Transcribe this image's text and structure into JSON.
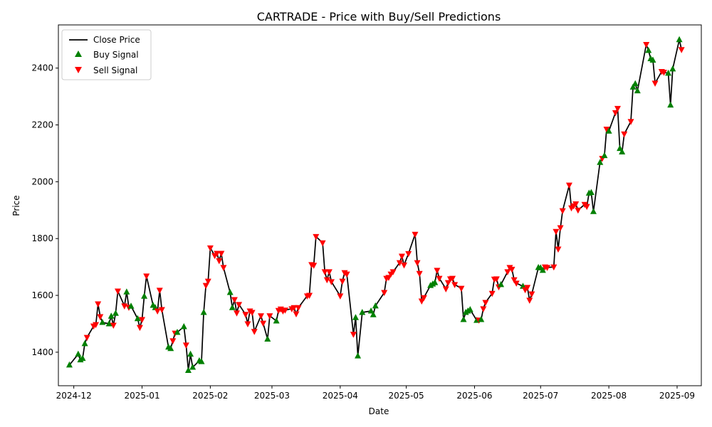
{
  "chart_data": {
    "type": "line",
    "title": "CARTRADE - Price with Buy/Sell Predictions",
    "xlabel": "Date",
    "ylabel": "Price",
    "x_range": [
      "2024-11-24",
      "2025-09-12"
    ],
    "ylim": [
      1282,
      2552
    ],
    "x_ticks": [
      {
        "date": "2024-12-01",
        "label": "2024-12"
      },
      {
        "date": "2025-01-01",
        "label": "2025-01"
      },
      {
        "date": "2025-02-01",
        "label": "2025-02"
      },
      {
        "date": "2025-03-01",
        "label": "2025-03"
      },
      {
        "date": "2025-04-01",
        "label": "2025-04"
      },
      {
        "date": "2025-05-01",
        "label": "2025-05"
      },
      {
        "date": "2025-06-01",
        "label": "2025-06"
      },
      {
        "date": "2025-07-01",
        "label": "2025-07"
      },
      {
        "date": "2025-08-01",
        "label": "2025-08"
      },
      {
        "date": "2025-09-01",
        "label": "2025-09"
      }
    ],
    "y_ticks": [
      1400,
      1600,
      1800,
      2000,
      2200,
      2400
    ],
    "grid": false,
    "legend_position": "top-left",
    "legend": [
      {
        "label": "Close Price",
        "marker": "line",
        "color": "#000000"
      },
      {
        "label": "Buy Signal",
        "marker": "triangle-up",
        "color": "#008000"
      },
      {
        "label": "Sell Signal",
        "marker": "triangle-down",
        "color": "#ff0000"
      }
    ],
    "points": [
      [
        "2024-11-29",
        1355,
        "B"
      ],
      [
        "2024-12-03",
        1393,
        "B"
      ],
      [
        "2024-12-04",
        1373,
        "B"
      ],
      [
        "2024-12-05",
        1378,
        "B"
      ],
      [
        "2024-12-06",
        1430,
        "B"
      ],
      [
        "2024-12-07",
        1452,
        "S"
      ],
      [
        "2024-12-10",
        1492,
        "S"
      ],
      [
        "2024-12-11",
        1497,
        "S"
      ],
      [
        "2024-12-12",
        1570,
        "S"
      ],
      [
        "2024-12-13",
        1525,
        "S"
      ],
      [
        "2024-12-14",
        1505,
        "B"
      ],
      [
        "2024-12-17",
        1500,
        "B"
      ],
      [
        "2024-12-18",
        1527,
        "B"
      ],
      [
        "2024-12-19",
        1495,
        "S"
      ],
      [
        "2024-12-20",
        1537,
        "B"
      ],
      [
        "2024-12-21",
        1615,
        "S"
      ],
      [
        "2024-12-24",
        1563,
        "S"
      ],
      [
        "2024-12-25",
        1612,
        "B"
      ],
      [
        "2024-12-26",
        1558,
        "S"
      ],
      [
        "2024-12-27",
        1562,
        "B"
      ],
      [
        "2024-12-30",
        1518,
        "B"
      ],
      [
        "2024-12-31",
        1487,
        "S"
      ],
      [
        "2025-01-01",
        1515,
        "S"
      ],
      [
        "2025-01-02",
        1597,
        "B"
      ],
      [
        "2025-01-03",
        1668,
        "S"
      ],
      [
        "2025-01-06",
        1565,
        "B"
      ],
      [
        "2025-01-07",
        1557,
        "B"
      ],
      [
        "2025-01-08",
        1545,
        "S"
      ],
      [
        "2025-01-09",
        1618,
        "S"
      ],
      [
        "2025-01-10",
        1550,
        "S"
      ],
      [
        "2025-01-13",
        1418,
        "B"
      ],
      [
        "2025-01-14",
        1413,
        "B"
      ],
      [
        "2025-01-15",
        1440,
        "S"
      ],
      [
        "2025-01-16",
        1467,
        "S"
      ],
      [
        "2025-01-17",
        1470,
        "B"
      ],
      [
        "2025-01-20",
        1490,
        "B"
      ],
      [
        "2025-01-21",
        1425,
        "S"
      ],
      [
        "2025-01-22",
        1336,
        "B"
      ],
      [
        "2025-01-23",
        1393,
        "B"
      ],
      [
        "2025-01-24",
        1347,
        "B"
      ],
      [
        "2025-01-27",
        1370,
        "B"
      ],
      [
        "2025-01-28",
        1367,
        "B"
      ],
      [
        "2025-01-29",
        1540,
        "B"
      ],
      [
        "2025-01-30",
        1635,
        "S"
      ],
      [
        "2025-01-31",
        1650,
        "S"
      ],
      [
        "2025-02-01",
        1767,
        "S"
      ],
      [
        "2025-02-03",
        1740,
        "S"
      ],
      [
        "2025-02-04",
        1748,
        "S"
      ],
      [
        "2025-02-05",
        1722,
        "S"
      ],
      [
        "2025-02-06",
        1748,
        "S"
      ],
      [
        "2025-02-07",
        1698,
        "S"
      ],
      [
        "2025-02-10",
        1610,
        "B"
      ],
      [
        "2025-02-11",
        1557,
        "B"
      ],
      [
        "2025-02-12",
        1585,
        "S"
      ],
      [
        "2025-02-13",
        1538,
        "S"
      ],
      [
        "2025-02-14",
        1568,
        "S"
      ],
      [
        "2025-02-17",
        1533,
        "S"
      ],
      [
        "2025-02-18",
        1500,
        "S"
      ],
      [
        "2025-02-19",
        1545,
        "S"
      ],
      [
        "2025-02-20",
        1540,
        "S"
      ],
      [
        "2025-02-21",
        1473,
        "S"
      ],
      [
        "2025-02-24",
        1528,
        "S"
      ],
      [
        "2025-02-25",
        1502,
        "S"
      ],
      [
        "2025-02-27",
        1446,
        "B"
      ],
      [
        "2025-02-28",
        1528,
        "S"
      ],
      [
        "2025-03-03",
        1510,
        "B"
      ],
      [
        "2025-03-04",
        1547,
        "S"
      ],
      [
        "2025-03-05",
        1552,
        "S"
      ],
      [
        "2025-03-06",
        1545,
        "S"
      ],
      [
        "2025-03-07",
        1548,
        "S"
      ],
      [
        "2025-03-10",
        1553,
        "S"
      ],
      [
        "2025-03-11",
        1557,
        "S"
      ],
      [
        "2025-03-12",
        1535,
        "S"
      ],
      [
        "2025-03-13",
        1557,
        "S"
      ],
      [
        "2025-03-17",
        1598,
        "S"
      ],
      [
        "2025-03-18",
        1600,
        "S"
      ],
      [
        "2025-03-19",
        1708,
        "S"
      ],
      [
        "2025-03-20",
        1706,
        "S"
      ],
      [
        "2025-03-21",
        1807,
        "S"
      ],
      [
        "2025-03-24",
        1785,
        "S"
      ],
      [
        "2025-03-25",
        1683,
        "S"
      ],
      [
        "2025-03-26",
        1655,
        "S"
      ],
      [
        "2025-03-27",
        1683,
        "S"
      ],
      [
        "2025-03-28",
        1648,
        "S"
      ],
      [
        "2025-04-01",
        1598,
        "S"
      ],
      [
        "2025-04-02",
        1650,
        "S"
      ],
      [
        "2025-04-03",
        1680,
        "S"
      ],
      [
        "2025-04-04",
        1675,
        "S"
      ],
      [
        "2025-04-07",
        1463,
        "S"
      ],
      [
        "2025-04-08",
        1522,
        "B"
      ],
      [
        "2025-04-09",
        1387,
        "B"
      ],
      [
        "2025-04-11",
        1540,
        "B"
      ],
      [
        "2025-04-15",
        1545,
        "B"
      ],
      [
        "2025-04-16",
        1532,
        "B"
      ],
      [
        "2025-04-17",
        1563,
        "B"
      ],
      [
        "2025-04-21",
        1610,
        "S"
      ],
      [
        "2025-04-22",
        1660,
        "S"
      ],
      [
        "2025-04-23",
        1663,
        "S"
      ],
      [
        "2025-04-24",
        1675,
        "S"
      ],
      [
        "2025-04-25",
        1683,
        "S"
      ],
      [
        "2025-04-28",
        1715,
        "S"
      ],
      [
        "2025-04-29",
        1738,
        "S"
      ],
      [
        "2025-04-30",
        1707,
        "S"
      ],
      [
        "2025-05-02",
        1747,
        "S"
      ],
      [
        "2025-05-05",
        1815,
        "S"
      ],
      [
        "2025-05-06",
        1715,
        "S"
      ],
      [
        "2025-05-07",
        1677,
        "S"
      ],
      [
        "2025-05-08",
        1580,
        "S"
      ],
      [
        "2025-05-09",
        1592,
        "S"
      ],
      [
        "2025-05-12",
        1635,
        "B"
      ],
      [
        "2025-05-13",
        1640,
        "B"
      ],
      [
        "2025-05-14",
        1645,
        "B"
      ],
      [
        "2025-05-15",
        1688,
        "S"
      ],
      [
        "2025-05-16",
        1660,
        "S"
      ],
      [
        "2025-05-19",
        1623,
        "S"
      ],
      [
        "2025-05-20",
        1645,
        "S"
      ],
      [
        "2025-05-21",
        1658,
        "S"
      ],
      [
        "2025-05-22",
        1660,
        "S"
      ],
      [
        "2025-05-23",
        1638,
        "S"
      ],
      [
        "2025-05-26",
        1625,
        "S"
      ],
      [
        "2025-05-27",
        1515,
        "B"
      ],
      [
        "2025-05-28",
        1540,
        "B"
      ],
      [
        "2025-05-29",
        1545,
        "B"
      ],
      [
        "2025-05-30",
        1550,
        "B"
      ],
      [
        "2025-06-02",
        1512,
        "B"
      ],
      [
        "2025-06-03",
        1513,
        "S"
      ],
      [
        "2025-06-04",
        1515,
        "B"
      ],
      [
        "2025-06-05",
        1553,
        "S"
      ],
      [
        "2025-06-06",
        1575,
        "S"
      ],
      [
        "2025-06-09",
        1607,
        "S"
      ],
      [
        "2025-06-10",
        1657,
        "S"
      ],
      [
        "2025-06-11",
        1658,
        "S"
      ],
      [
        "2025-06-12",
        1630,
        "S"
      ],
      [
        "2025-06-13",
        1638,
        "B"
      ],
      [
        "2025-06-16",
        1683,
        "S"
      ],
      [
        "2025-06-17",
        1698,
        "S"
      ],
      [
        "2025-06-18",
        1692,
        "S"
      ],
      [
        "2025-06-19",
        1655,
        "S"
      ],
      [
        "2025-06-20",
        1643,
        "S"
      ],
      [
        "2025-06-23",
        1632,
        "B"
      ],
      [
        "2025-06-24",
        1620,
        "S"
      ],
      [
        "2025-06-25",
        1628,
        "S"
      ],
      [
        "2025-06-26",
        1583,
        "S"
      ],
      [
        "2025-06-27",
        1605,
        "S"
      ],
      [
        "2025-06-30",
        1698,
        "B"
      ],
      [
        "2025-07-01",
        1697,
        "B"
      ],
      [
        "2025-07-02",
        1688,
        "B"
      ],
      [
        "2025-07-03",
        1700,
        "S"
      ],
      [
        "2025-07-04",
        1698,
        "S"
      ],
      [
        "2025-07-07",
        1700,
        "S"
      ],
      [
        "2025-07-08",
        1825,
        "S"
      ],
      [
        "2025-07-09",
        1763,
        "S"
      ],
      [
        "2025-07-10",
        1838,
        "S"
      ],
      [
        "2025-07-11",
        1898,
        "S"
      ],
      [
        "2025-07-14",
        1988,
        "S"
      ],
      [
        "2025-07-15",
        1908,
        "S"
      ],
      [
        "2025-07-16",
        1915,
        "S"
      ],
      [
        "2025-07-17",
        1922,
        "S"
      ],
      [
        "2025-07-18",
        1900,
        "S"
      ],
      [
        "2025-07-21",
        1920,
        "S"
      ],
      [
        "2025-07-22",
        1913,
        "S"
      ],
      [
        "2025-07-23",
        1960,
        "B"
      ],
      [
        "2025-07-24",
        1962,
        "B"
      ],
      [
        "2025-07-25",
        1895,
        "B"
      ],
      [
        "2025-07-28",
        2068,
        "B"
      ],
      [
        "2025-07-29",
        2082,
        "S"
      ],
      [
        "2025-07-30",
        2092,
        "B"
      ],
      [
        "2025-07-31",
        2185,
        "S"
      ],
      [
        "2025-08-01",
        2178,
        "B"
      ],
      [
        "2025-08-04",
        2243,
        "S"
      ],
      [
        "2025-08-05",
        2258,
        "S"
      ],
      [
        "2025-08-06",
        2117,
        "B"
      ],
      [
        "2025-08-07",
        2105,
        "B"
      ],
      [
        "2025-08-08",
        2168,
        "S"
      ],
      [
        "2025-08-11",
        2212,
        "S"
      ],
      [
        "2025-08-12",
        2333,
        "B"
      ],
      [
        "2025-08-13",
        2345,
        "B"
      ],
      [
        "2025-08-14",
        2320,
        "B"
      ],
      [
        "2025-08-18",
        2483,
        "S"
      ],
      [
        "2025-08-19",
        2462,
        "B"
      ],
      [
        "2025-08-20",
        2433,
        "B"
      ],
      [
        "2025-08-21",
        2428,
        "B"
      ],
      [
        "2025-08-22",
        2347,
        "S"
      ],
      [
        "2025-08-25",
        2388,
        "S"
      ],
      [
        "2025-08-26",
        2385,
        "S"
      ],
      [
        "2025-08-28",
        2382,
        "B"
      ],
      [
        "2025-08-29",
        2270,
        "B"
      ],
      [
        "2025-08-30",
        2397,
        "B"
      ],
      [
        "2025-09-02",
        2500,
        "B"
      ],
      [
        "2025-09-03",
        2465,
        "S"
      ]
    ]
  }
}
